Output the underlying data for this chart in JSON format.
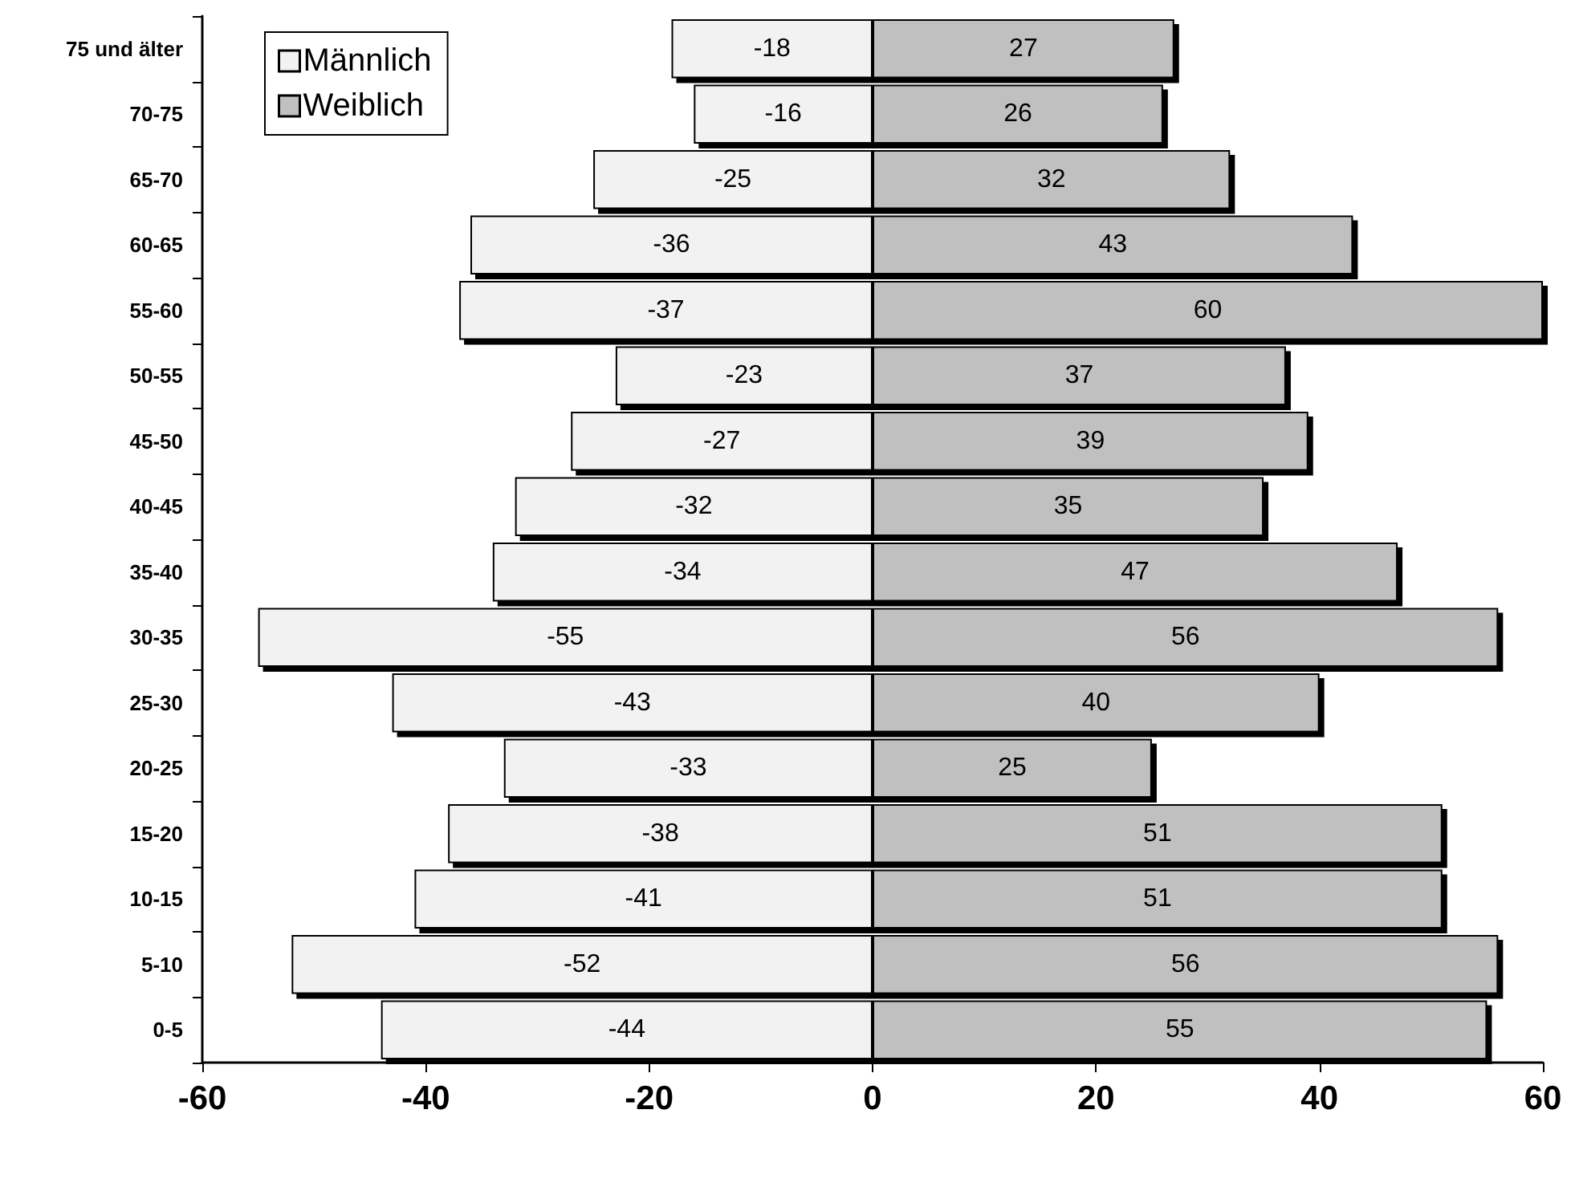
{
  "chart_data": {
    "type": "bar",
    "orientation": "horizontal",
    "categories": [
      "75 und älter",
      "70-75",
      "65-70",
      "60-65",
      "55-60",
      "50-55",
      "45-50",
      "40-45",
      "35-40",
      "30-35",
      "25-30",
      "20-25",
      "15-20",
      "10-15",
      "5-10",
      "0-5"
    ],
    "series": [
      {
        "name": "Männlich",
        "color": "#f2f2f2",
        "values": [
          -18,
          -16,
          -25,
          -36,
          -37,
          -23,
          -27,
          -32,
          -34,
          -55,
          -43,
          -33,
          -38,
          -41,
          -52,
          -44
        ]
      },
      {
        "name": "Weiblich",
        "color": "#c0c0c0",
        "values": [
          27,
          26,
          32,
          43,
          60,
          37,
          39,
          35,
          47,
          56,
          40,
          25,
          51,
          51,
          56,
          55
        ]
      }
    ],
    "xlim": [
      -60,
      60
    ],
    "xticks": [
      -60,
      -40,
      -20,
      0,
      20,
      40,
      60
    ],
    "stacked": true,
    "data_labels": true,
    "grid": false,
    "legend": "top left"
  }
}
